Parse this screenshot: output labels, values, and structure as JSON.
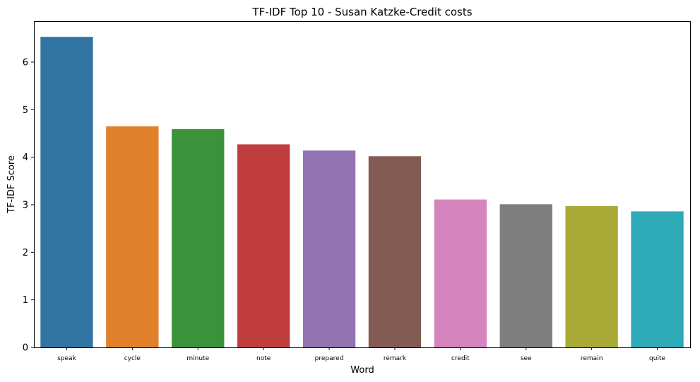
{
  "chart_data": {
    "type": "bar",
    "title": "TF-IDF Top 10 - Susan Katzke-Credit costs",
    "xlabel": "Word",
    "ylabel": "TF-IDF Score",
    "categories": [
      "speak",
      "cycle",
      "minute",
      "note",
      "prepared",
      "remark",
      "credit",
      "see",
      "remain",
      "quite"
    ],
    "values": [
      6.53,
      4.65,
      4.59,
      4.27,
      4.14,
      4.02,
      3.11,
      3.01,
      2.97,
      2.86
    ],
    "colors": [
      "#3274a1",
      "#e1812c",
      "#3a923a",
      "#c03d3e",
      "#9372b2",
      "#845b53",
      "#d684bd",
      "#7f7f7f",
      "#a9aa35",
      "#2eaab8"
    ],
    "ylim": [
      0,
      6.86
    ],
    "yticks": [
      "0",
      "1",
      "2",
      "3",
      "4",
      "5",
      "6"
    ],
    "grid": false,
    "legend": "none"
  }
}
